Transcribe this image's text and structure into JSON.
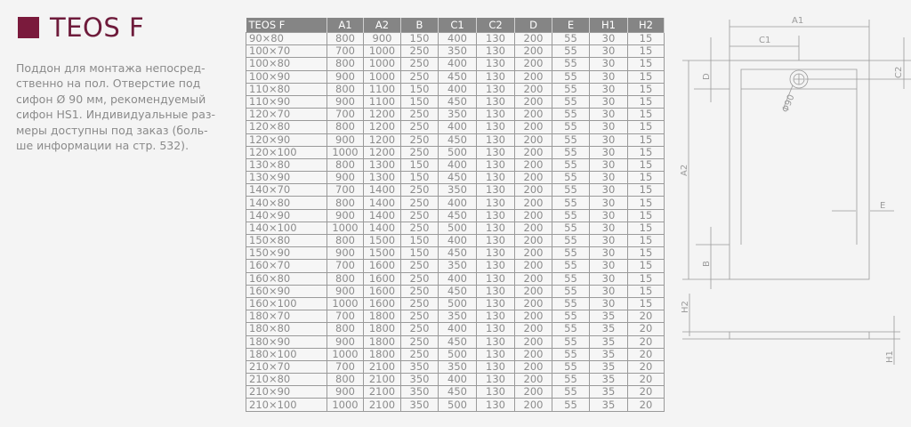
{
  "title": "TEOS F",
  "brand_color": "#7a1a3c",
  "description": "Поддон для монтажа непосред-\nственно на пол. Отверстие под\nсифон Ø 90 мм, рекомендуемый\nсифон HS1. Индивидуальные раз-\nмеры доступны под заказ (боль-\nше информации на стр. 532).",
  "table": {
    "headers": [
      "TEOS F",
      "A1",
      "A2",
      "B",
      "C1",
      "C2",
      "D",
      "E",
      "H1",
      "H2"
    ],
    "rows": [
      [
        "90×80",
        "800",
        "900",
        "150",
        "400",
        "130",
        "200",
        "55",
        "30",
        "15"
      ],
      [
        "100×70",
        "700",
        "1000",
        "250",
        "350",
        "130",
        "200",
        "55",
        "30",
        "15"
      ],
      [
        "100×80",
        "800",
        "1000",
        "250",
        "400",
        "130",
        "200",
        "55",
        "30",
        "15"
      ],
      [
        "100×90",
        "900",
        "1000",
        "250",
        "450",
        "130",
        "200",
        "55",
        "30",
        "15"
      ],
      [
        "110×80",
        "800",
        "1100",
        "150",
        "400",
        "130",
        "200",
        "55",
        "30",
        "15"
      ],
      [
        "110×90",
        "900",
        "1100",
        "150",
        "450",
        "130",
        "200",
        "55",
        "30",
        "15"
      ],
      [
        "120×70",
        "700",
        "1200",
        "250",
        "350",
        "130",
        "200",
        "55",
        "30",
        "15"
      ],
      [
        "120×80",
        "800",
        "1200",
        "250",
        "400",
        "130",
        "200",
        "55",
        "30",
        "15"
      ],
      [
        "120×90",
        "900",
        "1200",
        "250",
        "450",
        "130",
        "200",
        "55",
        "30",
        "15"
      ],
      [
        "120×100",
        "1000",
        "1200",
        "250",
        "500",
        "130",
        "200",
        "55",
        "30",
        "15"
      ],
      [
        "130×80",
        "800",
        "1300",
        "150",
        "400",
        "130",
        "200",
        "55",
        "30",
        "15"
      ],
      [
        "130×90",
        "900",
        "1300",
        "150",
        "450",
        "130",
        "200",
        "55",
        "30",
        "15"
      ],
      [
        "140×70",
        "700",
        "1400",
        "250",
        "350",
        "130",
        "200",
        "55",
        "30",
        "15"
      ],
      [
        "140×80",
        "800",
        "1400",
        "250",
        "400",
        "130",
        "200",
        "55",
        "30",
        "15"
      ],
      [
        "140×90",
        "900",
        "1400",
        "250",
        "450",
        "130",
        "200",
        "55",
        "30",
        "15"
      ],
      [
        "140×100",
        "1000",
        "1400",
        "250",
        "500",
        "130",
        "200",
        "55",
        "30",
        "15"
      ],
      [
        "150×80",
        "800",
        "1500",
        "150",
        "400",
        "130",
        "200",
        "55",
        "30",
        "15"
      ],
      [
        "150×90",
        "900",
        "1500",
        "150",
        "450",
        "130",
        "200",
        "55",
        "30",
        "15"
      ],
      [
        "160×70",
        "700",
        "1600",
        "250",
        "350",
        "130",
        "200",
        "55",
        "30",
        "15"
      ],
      [
        "160×80",
        "800",
        "1600",
        "250",
        "400",
        "130",
        "200",
        "55",
        "30",
        "15"
      ],
      [
        "160×90",
        "900",
        "1600",
        "250",
        "450",
        "130",
        "200",
        "55",
        "30",
        "15"
      ],
      [
        "160×100",
        "1000",
        "1600",
        "250",
        "500",
        "130",
        "200",
        "55",
        "30",
        "15"
      ],
      [
        "180×70",
        "700",
        "1800",
        "250",
        "350",
        "130",
        "200",
        "55",
        "35",
        "20"
      ],
      [
        "180×80",
        "800",
        "1800",
        "250",
        "400",
        "130",
        "200",
        "55",
        "35",
        "20"
      ],
      [
        "180×90",
        "900",
        "1800",
        "250",
        "450",
        "130",
        "200",
        "55",
        "35",
        "20"
      ],
      [
        "180×100",
        "1000",
        "1800",
        "250",
        "500",
        "130",
        "200",
        "55",
        "35",
        "20"
      ],
      [
        "210×70",
        "700",
        "2100",
        "350",
        "350",
        "130",
        "200",
        "55",
        "35",
        "20"
      ],
      [
        "210×80",
        "800",
        "2100",
        "350",
        "400",
        "130",
        "200",
        "55",
        "35",
        "20"
      ],
      [
        "210×90",
        "900",
        "2100",
        "350",
        "450",
        "130",
        "200",
        "55",
        "35",
        "20"
      ],
      [
        "210×100",
        "1000",
        "2100",
        "350",
        "500",
        "130",
        "200",
        "55",
        "35",
        "20"
      ]
    ]
  },
  "diagram": {
    "labels": {
      "a1": "A1",
      "c1": "C1",
      "d": "D",
      "c2": "C2",
      "a2": "A2",
      "e": "E",
      "b": "B",
      "h2": "H2",
      "h1": "H1",
      "drain": "Φ90"
    }
  }
}
